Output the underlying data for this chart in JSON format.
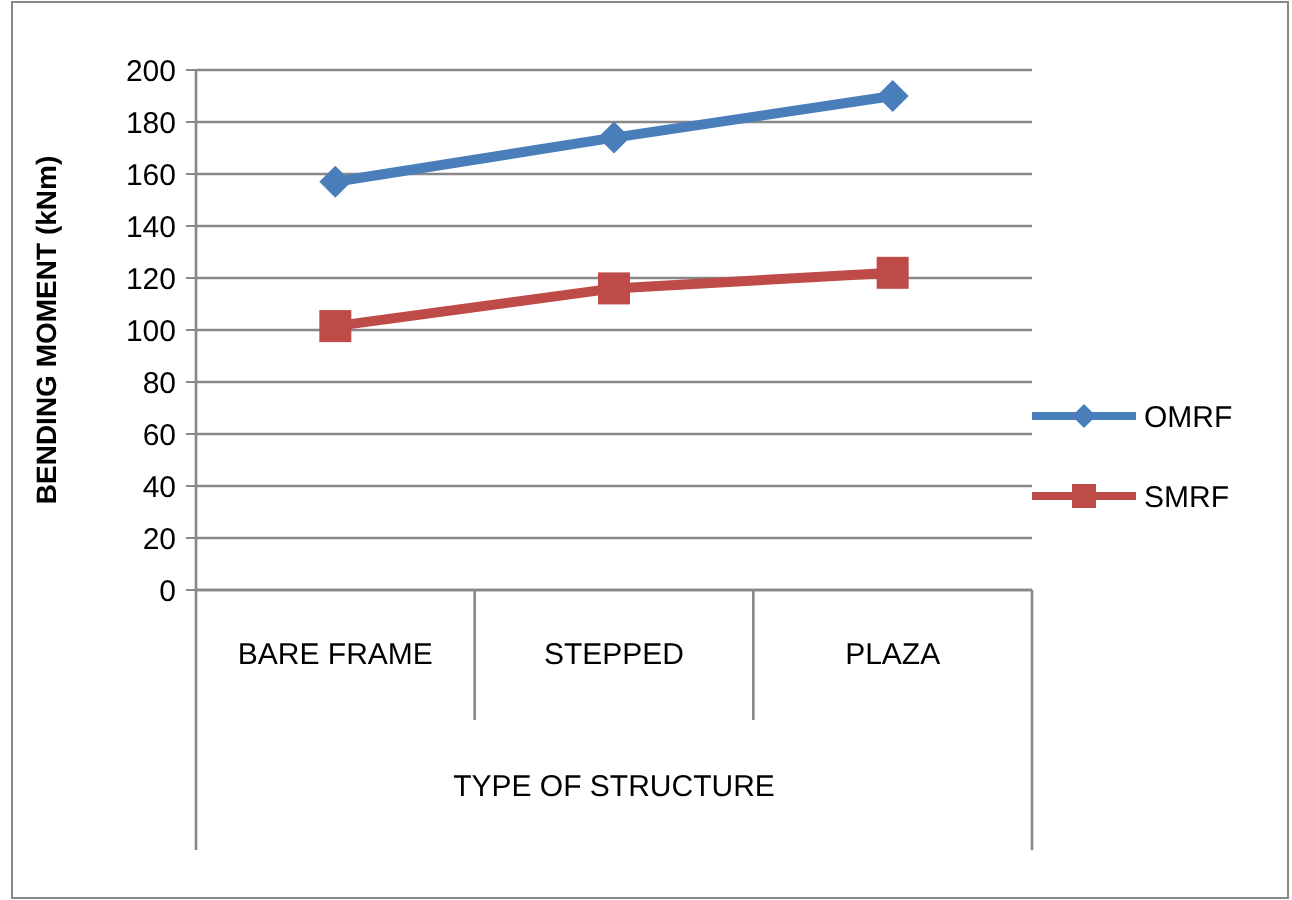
{
  "chart_data": {
    "type": "line",
    "xlabel": "TYPE OF STRUCTURE",
    "ylabel": "BENDING MOMENT (kNm)",
    "categories": [
      "BARE FRAME",
      "STEPPED",
      "PLAZA"
    ],
    "series": [
      {
        "name": "OMRF",
        "color": "#4a7ebb",
        "values": [
          157,
          174,
          190
        ],
        "marker": "diamond"
      },
      {
        "name": "SMRF",
        "color": "#be4b48",
        "values": [
          101.5,
          116,
          122
        ],
        "marker": "square"
      }
    ],
    "ylim": [
      0,
      200
    ],
    "yticks": [
      0,
      20,
      40,
      60,
      80,
      100,
      120,
      140,
      160,
      180,
      200
    ],
    "grid": "y",
    "legend": "right",
    "line_style": "solid"
  }
}
